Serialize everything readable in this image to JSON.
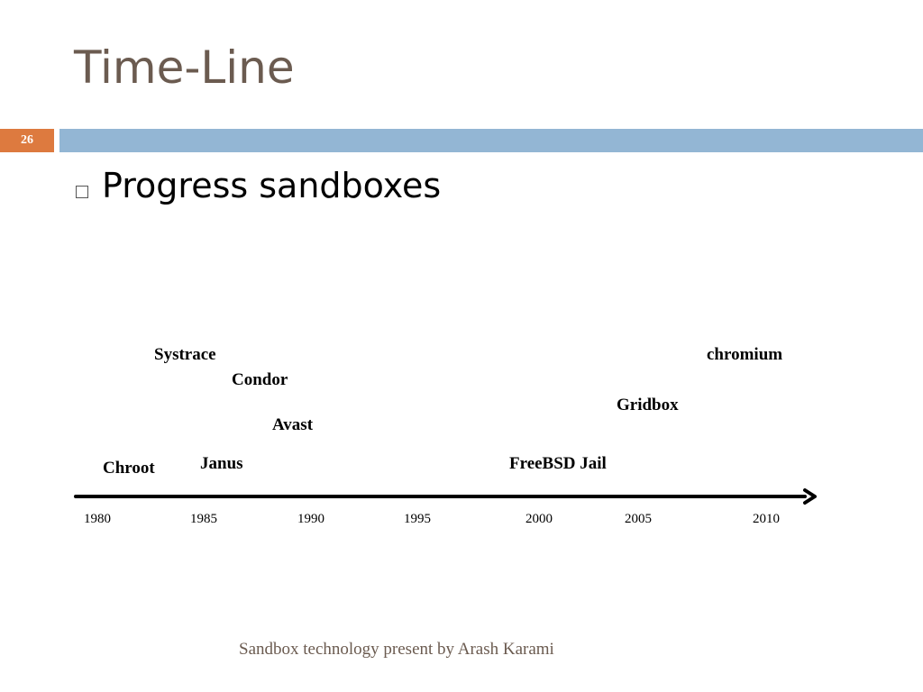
{
  "slide": {
    "title": "Time-Line",
    "page_number": "26",
    "bullet": "Progress sandboxes",
    "footer": "Sandbox technology present by Arash Karami"
  },
  "timeline": {
    "events": [
      {
        "label": "Systrace"
      },
      {
        "label": "Condor"
      },
      {
        "label": "Avast"
      },
      {
        "label": "Chroot"
      },
      {
        "label": "Janus"
      },
      {
        "label": "FreeBSD Jail"
      },
      {
        "label": "Gridbox"
      },
      {
        "label": "chromium"
      }
    ],
    "years": [
      "1980",
      "1985",
      "1990",
      "1995",
      "2000",
      "2005",
      "2010"
    ]
  },
  "colors": {
    "title": "#6b5b50",
    "page_badge": "#dd7a3f",
    "header_band": "#93b6d4"
  }
}
